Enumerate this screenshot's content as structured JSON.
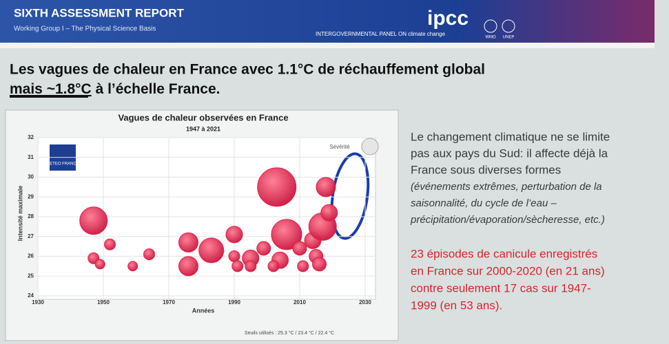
{
  "header": {
    "title": "SIXTH ASSESSMENT REPORT",
    "subtitle": "Working Group I – The Physical Science Basis",
    "logo": "ipcc",
    "tagline": "INTERGOVERNMENTAL PANEL ON climate change",
    "partners": [
      "WMO",
      "UNEP"
    ]
  },
  "slide_title": {
    "line1": "Les vagues de chaleur en France avec 1.1°C de réchauffement global",
    "line2_underlined": "mais ~1.8°C",
    "line2_rest": " à l’échelle France."
  },
  "right_text": {
    "paragraph1": [
      "Le changement climatique ne se limite",
      "pas aux pays du Sud: il affecte déjà la",
      "France sous diverses formes"
    ],
    "paragraph1_italic": [
      "(événements extrêmes, perturbation de la",
      "saisonnalité, du cycle de l’eau –",
      "précipitation/évaporation/sècheresse, etc.)"
    ],
    "paragraph2": [
      "23 épisodes de canicule enregistrés",
      "en France sur 2000-2020 (en 21 ans)",
      "contre seulement 17 cas sur 1947-",
      "1999 (en 53 ans)."
    ]
  },
  "chart_data": {
    "type": "bubble",
    "title": "Vagues de chaleur observées en France",
    "subtitle": "1947 à 2021",
    "x_label": "Années",
    "y_label": "Intensité maximale",
    "size_legend": "Sévérité",
    "source_logo": "METEO FRANCE",
    "footnote": "Seuils utilisés : 25.3 °C / 23.4 °C / 22.4 °C",
    "xlim": [
      1930,
      2030
    ],
    "ylim": [
      24,
      32
    ],
    "xticks": [
      1930,
      1950,
      1970,
      1990,
      2010,
      2030
    ],
    "yticks": [
      24,
      25,
      26,
      27,
      28,
      29,
      30,
      31,
      32
    ],
    "grid": true,
    "series": [
      {
        "color": "#e0204a",
        "x": [
          1947,
          1952,
          1947,
          1949,
          1959,
          1964,
          1976,
          1976,
          1983,
          1990,
          1990,
          1991,
          1995,
          1995,
          1999,
          2003,
          2006,
          2004,
          2002,
          2010,
          2011,
          2014,
          2015,
          2017,
          2018,
          2019,
          2016
        ],
        "values": [
          27.8,
          26.6,
          25.9,
          25.6,
          25.5,
          26.1,
          26.7,
          25.5,
          26.3,
          27.1,
          26.0,
          25.5,
          25.9,
          25.5,
          26.4,
          29.5,
          27.1,
          25.8,
          25.5,
          26.4,
          25.5,
          26.8,
          26.0,
          27.5,
          29.5,
          28.2,
          25.6
        ],
        "size": [
          20,
          8,
          8,
          7,
          7,
          8,
          14,
          14,
          18,
          12,
          8,
          8,
          12,
          8,
          10,
          28,
          22,
          12,
          8,
          10,
          8,
          12,
          10,
          20,
          14,
          12,
          10
        ]
      }
    ]
  }
}
